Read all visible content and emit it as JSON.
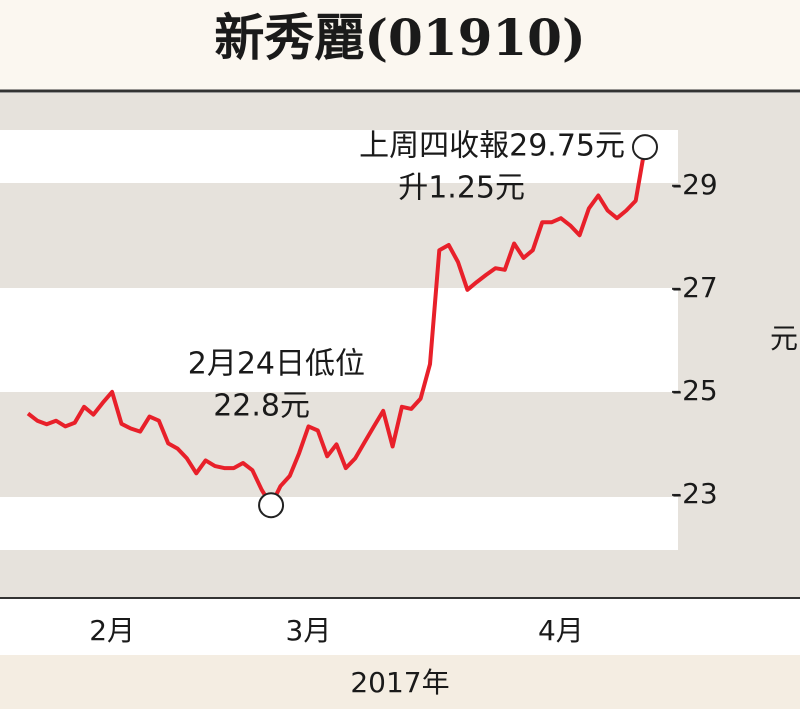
{
  "chart_data": {
    "type": "line",
    "title": "新秀麗(01910)",
    "values": [
      24.58,
      24.44,
      24.37,
      24.44,
      24.33,
      24.4,
      24.71,
      24.56,
      24.79,
      25.0,
      24.38,
      24.29,
      24.23,
      24.52,
      24.44,
      24.0,
      23.9,
      23.71,
      23.42,
      23.67,
      23.56,
      23.52,
      23.52,
      23.62,
      23.48,
      23.1,
      22.8,
      23.17,
      23.37,
      23.81,
      24.33,
      24.25,
      23.75,
      23.98,
      23.52,
      23.71,
      24.02,
      24.33,
      24.63,
      23.94,
      24.71,
      24.67,
      24.87,
      25.54,
      27.75,
      27.85,
      27.52,
      26.98,
      27.13,
      27.27,
      27.4,
      27.37,
      27.88,
      27.6,
      27.75,
      28.29,
      28.29,
      28.37,
      28.23,
      28.04,
      28.56,
      28.81,
      28.52,
      28.37,
      28.52,
      28.71,
      29.75
    ],
    "color": "#e8202a",
    "xticks": [
      {
        "value": 9,
        "label": "2月"
      },
      {
        "value": 30,
        "label": "3月"
      },
      {
        "value": 57,
        "label": "4月"
      }
    ],
    "xlabel": "2017年",
    "ylabel": "元",
    "ylim": [
      21,
      30.8
    ],
    "yticks": [
      {
        "value": 29,
        "label": "-29"
      },
      {
        "value": 27,
        "label": "-27"
      },
      {
        "value": 25,
        "label": "-25"
      },
      {
        "value": 23,
        "label": "-23"
      }
    ],
    "annotations": [
      {
        "index": 26,
        "lines": [
          "2月24日低位",
          "22.8元"
        ]
      },
      {
        "index": 66,
        "lines": [
          "上周四收報29.75元",
          "升1.25元"
        ]
      }
    ]
  }
}
